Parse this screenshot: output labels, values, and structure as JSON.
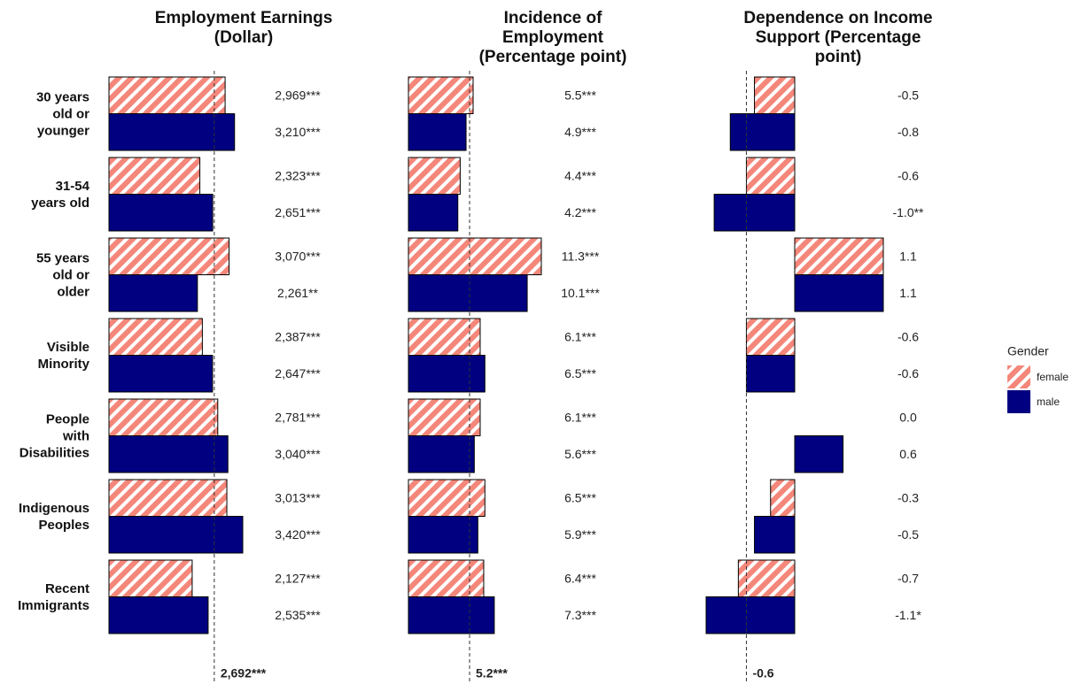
{
  "chart_data": [
    {
      "type": "bar",
      "orientation": "horizontal",
      "title": "Employment Earnings\n(Dollar)",
      "categories": [
        "30 years\nold or\nyounger",
        "31-54\nyears old",
        "55 years\nold or\nolder",
        "Visible\nMinority",
        "People\nwith\nDisabilities",
        "Indigenous\nPeoples",
        "Recent\nImmigrants"
      ],
      "series": [
        {
          "name": "female",
          "color": "#f4877a",
          "pattern": "hatch",
          "values": [
            2969,
            2323,
            3070,
            2387,
            2781,
            3013,
            2127
          ],
          "value_labels": [
            "2,969***",
            "2,323***",
            "3,070***",
            "2,387***",
            "2,781***",
            "3,013***",
            "2,127***"
          ]
        },
        {
          "name": "male",
          "color": "#000080",
          "values": [
            3210,
            2651,
            2261,
            2647,
            3040,
            3420,
            2535
          ],
          "value_labels": [
            "3,210***",
            "2,651***",
            "2,261**",
            "2,647***",
            "3,040***",
            "3,420***",
            "2,535***"
          ]
        }
      ],
      "reference_line": {
        "value": 2692,
        "label": "2,692***"
      },
      "legend": {
        "title": "Gender",
        "position": "right"
      }
    },
    {
      "type": "bar",
      "orientation": "horizontal",
      "title": "Incidence of\nEmployment\n(Percentage point)",
      "series": [
        {
          "color": "#f4877a",
          "pattern": "hatch",
          "values": [
            5.5,
            4.4,
            11.3,
            6.1,
            6.1,
            6.5,
            6.4
          ],
          "value_labels": [
            "5.5***",
            "4.4***",
            "11.3***",
            "6.1***",
            "6.1***",
            "6.5***",
            "6.4***"
          ]
        },
        {
          "color": "#000080",
          "values": [
            4.9,
            4.2,
            10.1,
            6.5,
            5.6,
            5.9,
            7.3
          ],
          "value_labels": [
            "4.9***",
            "4.2***",
            "10.1***",
            "6.5***",
            "5.6***",
            "5.9***",
            "7.3***"
          ]
        }
      ],
      "reference_line": {
        "value": 5.2,
        "label": "5.2***"
      }
    },
    {
      "type": "bar",
      "orientation": "horizontal",
      "title": "Dependence on Income\nSupport (Percentage\npoint)",
      "series": [
        {
          "color": "#f4877a",
          "pattern": "hatch",
          "values": [
            -0.5,
            -0.6,
            1.1,
            -0.6,
            0.0,
            -0.3,
            -0.7
          ],
          "value_labels": [
            "-0.5",
            "-0.6",
            "1.1",
            "-0.6",
            "0.0",
            "-0.3",
            "-0.7"
          ]
        },
        {
          "color": "#000080",
          "values": [
            -0.8,
            -1.0,
            1.1,
            -0.6,
            0.6,
            -0.5,
            -1.1
          ],
          "value_labels": [
            "-0.8",
            "-1.0**",
            "1.1",
            "-0.6",
            "0.6",
            "-0.5",
            "-1.1*"
          ]
        }
      ],
      "reference_line": {
        "value": -0.6,
        "label": "-0.6"
      }
    }
  ]
}
